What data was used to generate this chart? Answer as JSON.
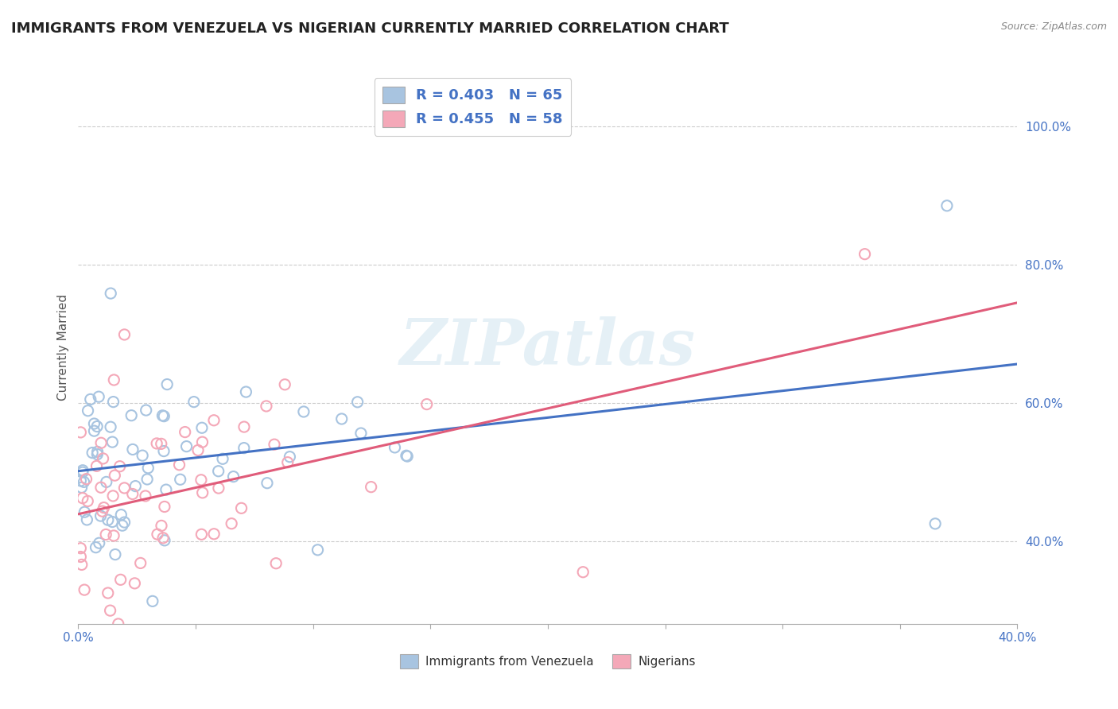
{
  "title": "IMMIGRANTS FROM VENEZUELA VS NIGERIAN CURRENTLY MARRIED CORRELATION CHART",
  "source": "Source: ZipAtlas.com",
  "ylabel": "Currently Married",
  "yticks": [
    0.4,
    0.6,
    0.8,
    1.0
  ],
  "ytick_labels": [
    "40.0%",
    "60.0%",
    "80.0%",
    "100.0%"
  ],
  "xtick_left": "0.0%",
  "xtick_right": "40.0%",
  "xlim": [
    0.0,
    0.4
  ],
  "ylim": [
    0.28,
    1.08
  ],
  "legend_r1": "R = 0.403",
  "legend_n1": "N = 65",
  "legend_r2": "R = 0.455",
  "legend_n2": "N = 58",
  "color_venezuela": "#a8c4e0",
  "color_nigeria": "#f4a8b8",
  "line_color_venezuela": "#4472c4",
  "line_color_nigeria": "#e05c7a",
  "watermark": "ZIPatlas",
  "title_fontsize": 13,
  "label_fontsize": 11,
  "tick_fontsize": 11,
  "background_color": "#ffffff",
  "grid_color": "#cccccc",
  "tick_color": "#4472c4"
}
